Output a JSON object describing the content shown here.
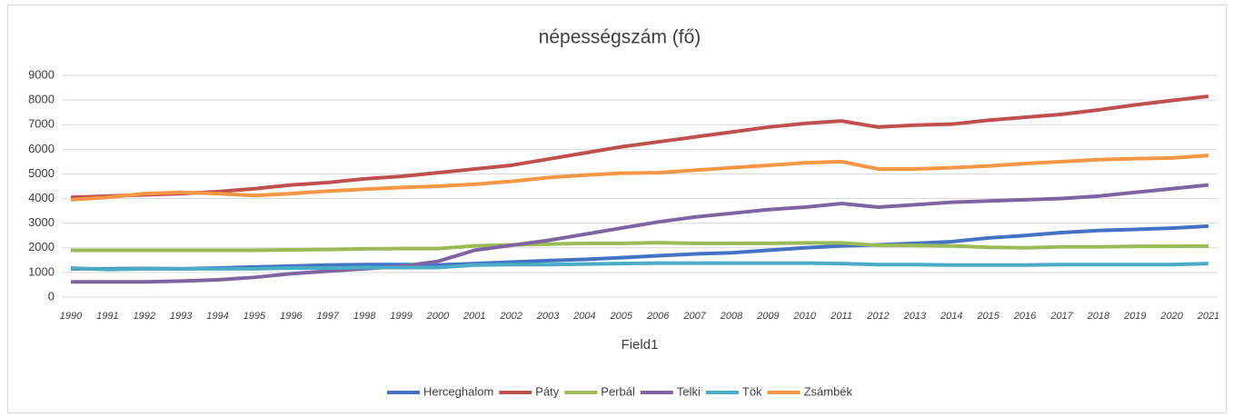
{
  "chart_data": {
    "type": "line",
    "title": "népességszám (fő)",
    "x_label": "Field1",
    "categories": [
      "1990",
      "1991",
      "1992",
      "1993",
      "1994",
      "1995",
      "1996",
      "1997",
      "1998",
      "1999",
      "2000",
      "2001",
      "2002",
      "2003",
      "2004",
      "2005",
      "2006",
      "2007",
      "2008",
      "2009",
      "2010",
      "2011",
      "2012",
      "2013",
      "2014",
      "2015",
      "2016",
      "2017",
      "2018",
      "2019",
      "2020",
      "2021"
    ],
    "ylim": [
      0,
      9000
    ],
    "yticks": [
      0,
      1000,
      2000,
      3000,
      4000,
      5000,
      6000,
      7000,
      8000,
      9000
    ],
    "grid": true,
    "legend": "bottom",
    "series": [
      {
        "name": "Herceghalom",
        "color": "#4472c4",
        "values": [
          1150,
          1150,
          1160,
          1150,
          1180,
          1220,
          1260,
          1300,
          1320,
          1320,
          1300,
          1360,
          1420,
          1480,
          1530,
          1600,
          1680,
          1750,
          1800,
          1900,
          2000,
          2080,
          2120,
          2180,
          2250,
          2400,
          2500,
          2620,
          2700,
          2750,
          2800,
          2880
        ]
      },
      {
        "name": "Páty",
        "color": "#c0504d",
        "values": [
          4050,
          4100,
          4150,
          4200,
          4280,
          4400,
          4550,
          4650,
          4800,
          4900,
          5050,
          5200,
          5350,
          5600,
          5850,
          6100,
          6300,
          6500,
          6700,
          6900,
          7050,
          7150,
          6900,
          6980,
          7020,
          7180,
          7300,
          7420,
          7600,
          7800,
          7980,
          8150
        ]
      },
      {
        "name": "Perbál",
        "color": "#9bbb59",
        "values": [
          1900,
          1900,
          1900,
          1900,
          1900,
          1900,
          1920,
          1930,
          1960,
          1970,
          1970,
          2080,
          2120,
          2150,
          2180,
          2180,
          2210,
          2180,
          2180,
          2180,
          2200,
          2200,
          2100,
          2100,
          2080,
          2020,
          2000,
          2040,
          2040,
          2060,
          2060,
          2070
        ]
      },
      {
        "name": "Telki",
        "color": "#8064a2",
        "values": [
          620,
          620,
          620,
          650,
          700,
          800,
          950,
          1050,
          1150,
          1250,
          1450,
          1900,
          2100,
          2300,
          2550,
          2800,
          3050,
          3250,
          3400,
          3550,
          3650,
          3800,
          3650,
          3750,
          3850,
          3900,
          3950,
          4000,
          4100,
          4250,
          4400,
          4550
        ]
      },
      {
        "name": "Tök",
        "color": "#4bacc6",
        "values": [
          1180,
          1120,
          1150,
          1150,
          1150,
          1150,
          1180,
          1180,
          1200,
          1200,
          1200,
          1300,
          1320,
          1320,
          1340,
          1360,
          1380,
          1380,
          1380,
          1380,
          1380,
          1360,
          1320,
          1320,
          1300,
          1300,
          1300,
          1320,
          1320,
          1320,
          1320,
          1360
        ]
      },
      {
        "name": "Zsámbék",
        "color": "#f79646",
        "values": [
          3950,
          4050,
          4200,
          4250,
          4200,
          4120,
          4200,
          4300,
          4380,
          4450,
          4500,
          4580,
          4700,
          4850,
          4950,
          5030,
          5050,
          5150,
          5250,
          5350,
          5450,
          5500,
          5200,
          5200,
          5250,
          5320,
          5420,
          5500,
          5580,
          5620,
          5650,
          5750
        ]
      }
    ]
  }
}
